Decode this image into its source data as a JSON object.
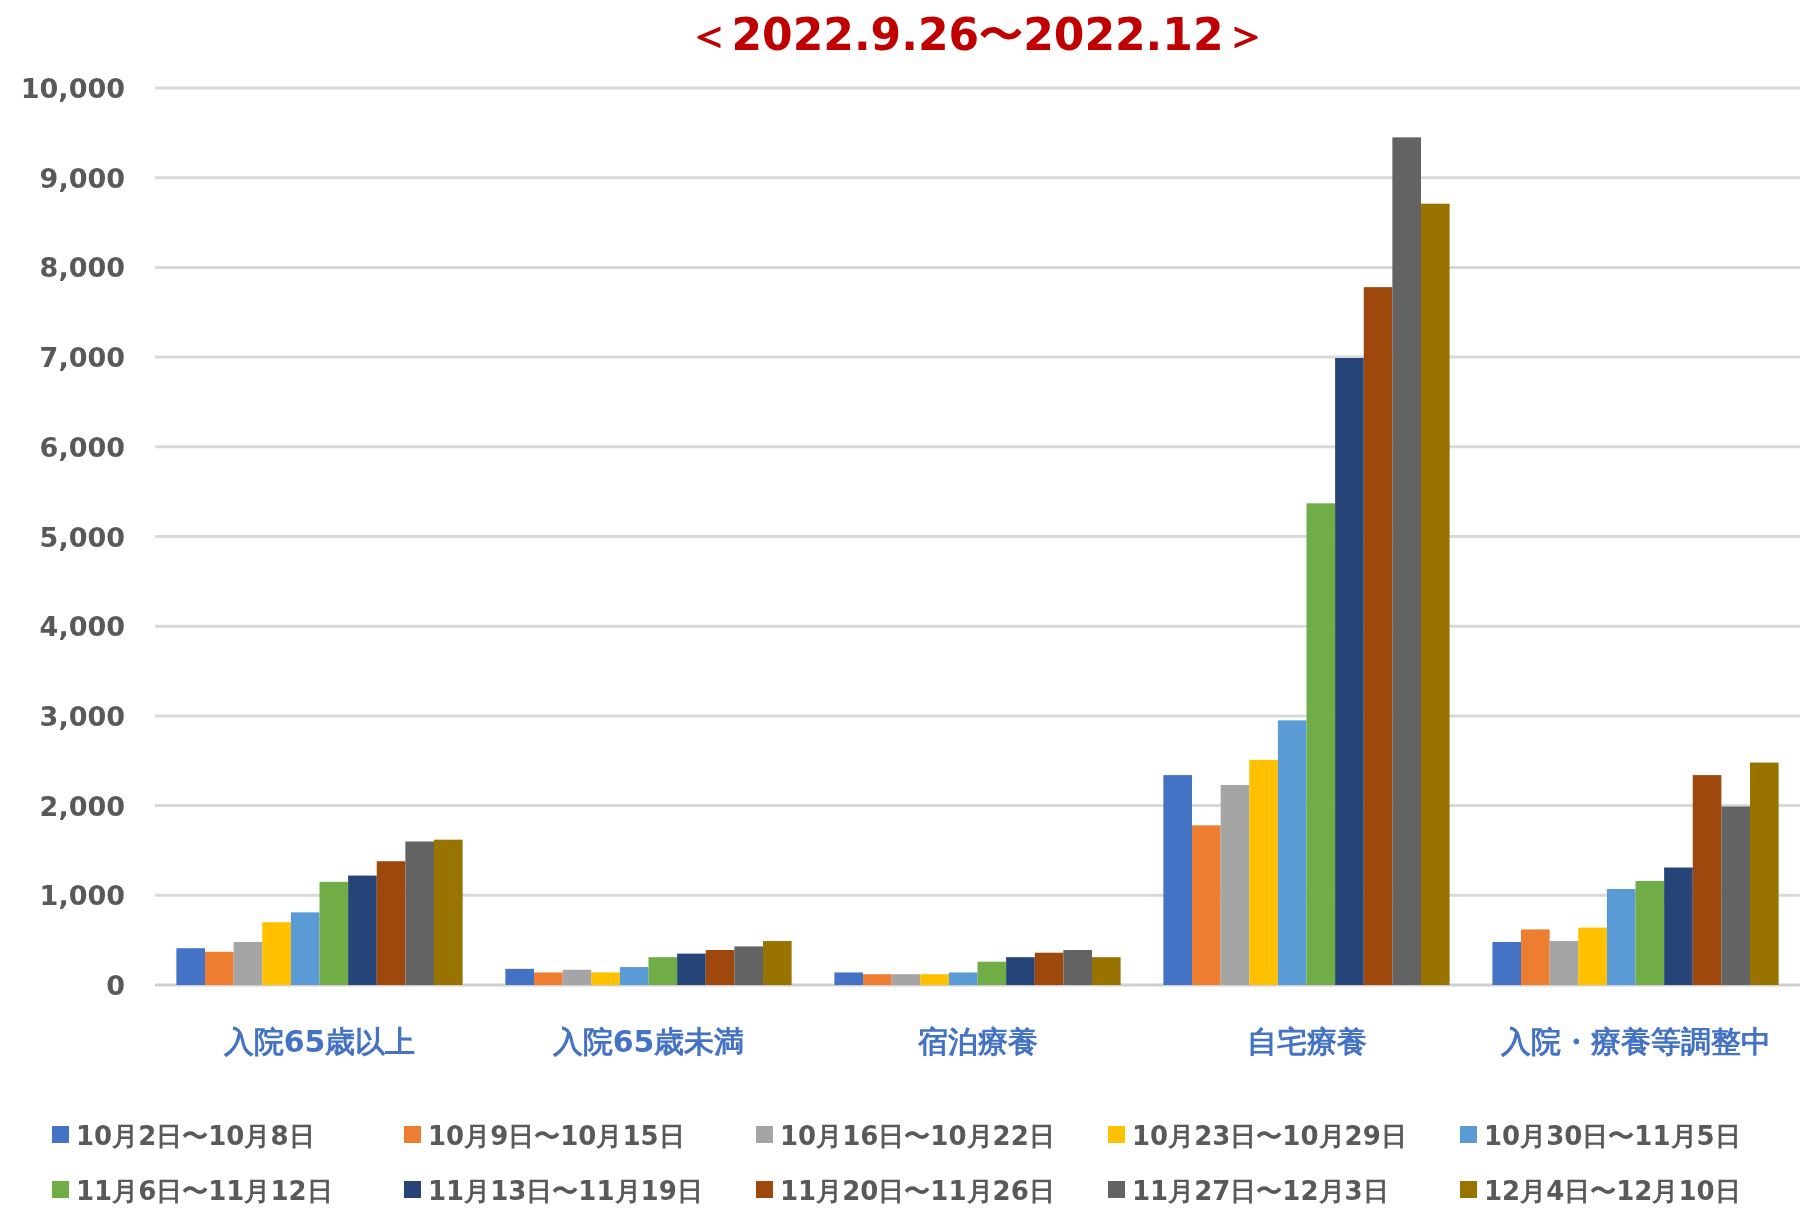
{
  "chart_data": {
    "type": "bar",
    "title": "＜2022.9.26〜2022.12＞",
    "categories": [
      "入院65歳以上",
      "入院65歳未満",
      "宿泊療養",
      "自宅療養",
      "入院・療養等調整中"
    ],
    "series": [
      {
        "name": "10月2日〜10月8日",
        "color": "#4472c4",
        "values": [
          410,
          180,
          140,
          2340,
          480
        ]
      },
      {
        "name": "10月9日〜10月15日",
        "color": "#ed7d31",
        "values": [
          370,
          140,
          120,
          1780,
          620
        ]
      },
      {
        "name": "10月16日〜10月22日",
        "color": "#a5a5a5",
        "values": [
          480,
          170,
          120,
          2230,
          490
        ]
      },
      {
        "name": "10月23日〜10月29日",
        "color": "#ffc000",
        "values": [
          700,
          140,
          120,
          2510,
          640
        ]
      },
      {
        "name": "10月30日〜11月5日",
        "color": "#5b9bd5",
        "values": [
          810,
          200,
          140,
          2950,
          1070
        ]
      },
      {
        "name": "11月6日〜11月12日",
        "color": "#70ad47",
        "values": [
          1150,
          310,
          260,
          5370,
          1160
        ]
      },
      {
        "name": "11月13日〜11月19日",
        "color": "#264478",
        "values": [
          1220,
          350,
          310,
          6990,
          1310
        ]
      },
      {
        "name": "11月20日〜11月26日",
        "color": "#9e480e",
        "values": [
          1380,
          390,
          360,
          7780,
          2340
        ]
      },
      {
        "name": "11月27日〜12月3日",
        "color": "#636363",
        "values": [
          1600,
          430,
          390,
          9450,
          1990
        ]
      },
      {
        "name": "12月4日〜12月10日",
        "color": "#997300",
        "values": [
          1620,
          490,
          310,
          8710,
          2480
        ]
      }
    ],
    "ylim": [
      0,
      10000
    ],
    "yticks": [
      0,
      {
        "value": 1000,
        "label": "1,000"
      },
      {
        "value": 2000,
        "label": "2,000"
      },
      {
        "value": 3000,
        "label": "3,000"
      },
      {
        "value": 4000,
        "label": "4,000"
      },
      {
        "value": 5000,
        "label": "5,000"
      },
      {
        "value": 6000,
        "label": "6,000"
      },
      {
        "value": 7000,
        "label": "7,000"
      },
      {
        "value": 8000,
        "label": "8,000"
      },
      {
        "value": 9000,
        "label": "9,000"
      },
      {
        "value": 10000,
        "label": "10,000"
      }
    ],
    "grid": "y",
    "legend": "bottom"
  }
}
